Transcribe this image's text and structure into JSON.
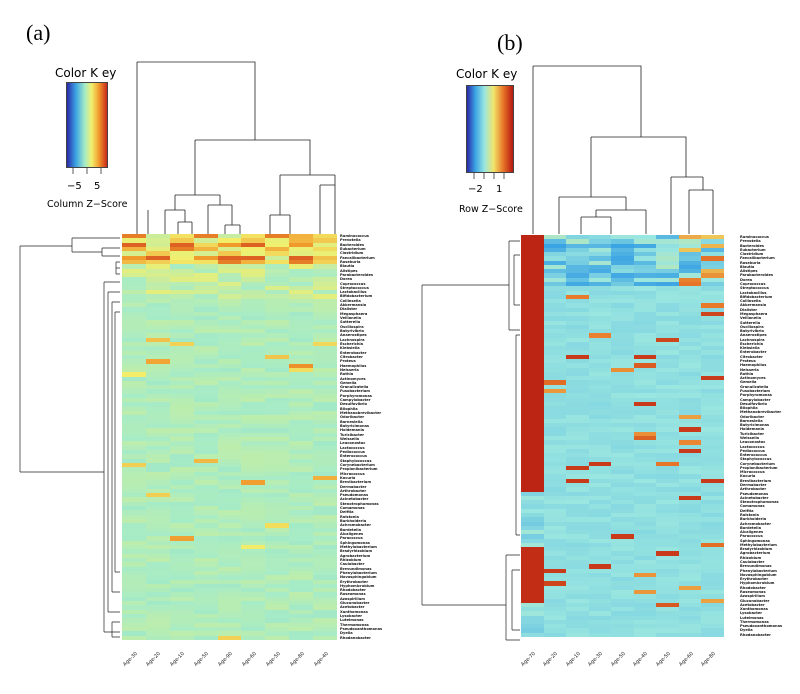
{
  "chart_data": [
    {
      "type": "heatmap",
      "panel_label": "(a)",
      "key_title": "Color K ey",
      "key_scale_label": "Column Z−Score",
      "key_ticks": [
        "−5",
        "5"
      ],
      "columns": [
        "Age-30",
        "Age-20",
        "Age-10",
        "Age-50",
        "Age-90",
        "Age-60",
        "Age-50",
        "Age-80",
        "Age-40"
      ],
      "colors": {
        "low": "#2a2aa8",
        "mid": "#a7ecc6",
        "high": "#c8281a"
      },
      "values_note": "standardized z-scores per column"
    },
    {
      "type": "heatmap",
      "panel_label": "(b)",
      "key_title": "Color K ey",
      "key_scale_label": "Row Z−Score",
      "key_ticks": [
        "−2",
        "1"
      ],
      "columns": [
        "Age-70",
        "Age-20",
        "Age-10",
        "Age-30",
        "Age-50",
        "Age-40",
        "Age-50",
        "Age-60",
        "Age-80"
      ],
      "colors": {
        "low": "#2a2aa8",
        "mid": "#9ae6e0",
        "high": "#b5160f"
      },
      "values_note": "standardized z-scores per row"
    }
  ],
  "row_labels": [
    "Ruminococcus",
    "Prevotella",
    "Bacteroides",
    "Eubacterium",
    "Clostridium",
    "Faecalibacterium",
    "Roseburia",
    "Blautia",
    "Alistipes",
    "Parabacteroides",
    "Dorea",
    "Coprococcus",
    "Streptococcus",
    "Lactobacillus",
    "Bifidobacterium",
    "Collinsella",
    "Akkermansia",
    "Dialister",
    "Megasphaera",
    "Veillonella",
    "Sutterella",
    "Oscillospira",
    "Butyrivibrio",
    "Anaerostipes",
    "Lachnospira",
    "Escherichia",
    "Klebsiella",
    "Enterobacter",
    "Citrobacter",
    "Proteus",
    "Haemophilus",
    "Neisseria",
    "Rothia",
    "Actinomyces",
    "Gemella",
    "Granulicatella",
    "Fusobacterium",
    "Porphyromonas",
    "Campylobacter",
    "Desulfovibrio",
    "Bilophila",
    "Methanobrevibacter",
    "Odoribacter",
    "Barnesiella",
    "Butyricimonas",
    "Holdemania",
    "Turicibacter",
    "Weissella",
    "Leuconostoc",
    "Lactococcus",
    "Pediococcus",
    "Enterococcus",
    "Staphylococcus",
    "Corynebacterium",
    "Propionibacterium",
    "Micrococcus",
    "Kocuria",
    "Brevibacterium",
    "Dermabacter",
    "Arthrobacter",
    "Pseudomonas",
    "Acinetobacter",
    "Stenotrophomonas",
    "Comamonas",
    "Delftia",
    "Ralstonia",
    "Burkholderia",
    "Achromobacter",
    "Bordetella",
    "Alcaligenes",
    "Paracoccus",
    "Sphingomonas",
    "Methylobacterium",
    "Bradyrhizobium",
    "Agrobacterium",
    "Rhizobium",
    "Caulobacter",
    "Brevundimonas",
    "Phenylobacterium",
    "Novosphingobium",
    "Erythrobacter",
    "Hyphomicrobium",
    "Rhodobacter",
    "Roseomonas",
    "Azospirillum",
    "Gluconobacter",
    "Acetobacter",
    "Xanthomonas",
    "Lysobacter",
    "Luteimonas",
    "Thermomonas",
    "Pseudoxanthomonas",
    "Dyella",
    "Rhodanobacter"
  ]
}
